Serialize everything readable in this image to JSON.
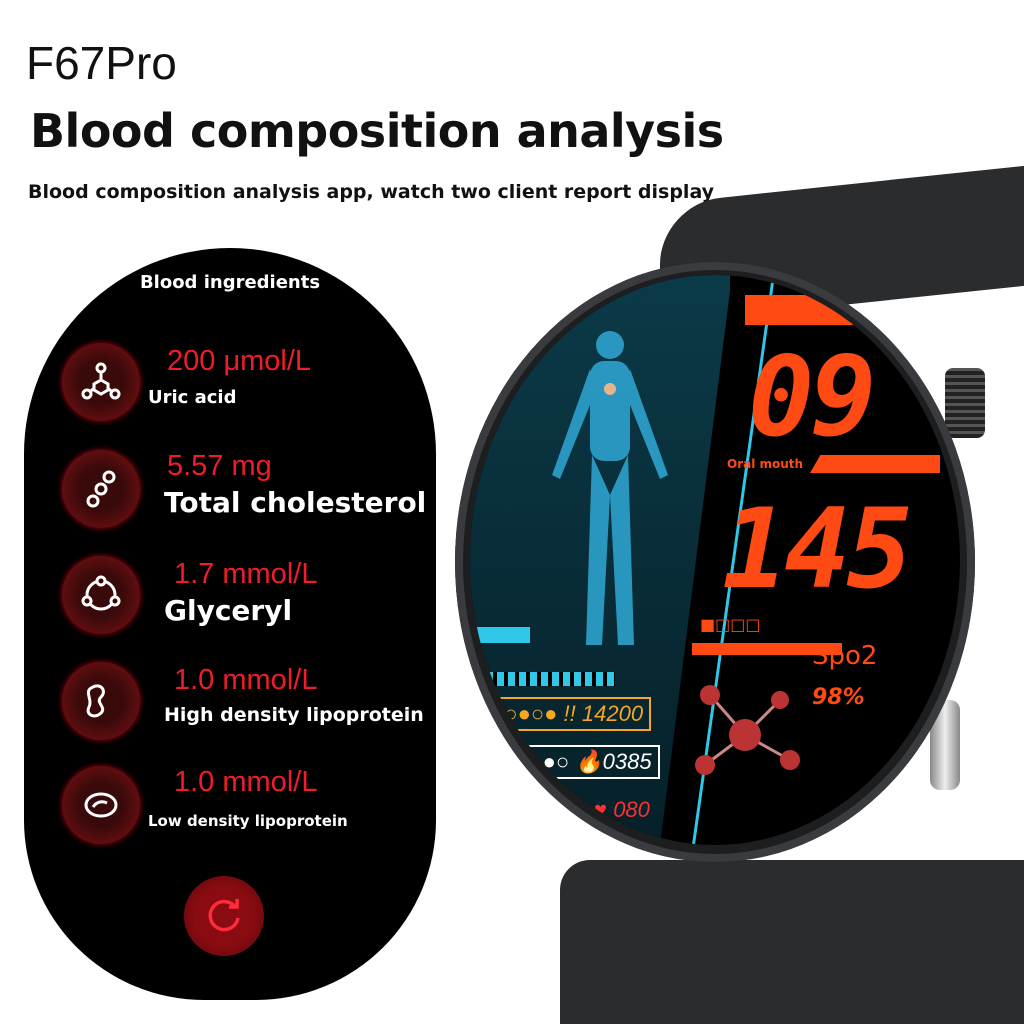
{
  "header": {
    "model": "F67Pro",
    "title": "Blood composition analysis",
    "subtitle": "Blood composition analysis app, watch two client report display"
  },
  "app": {
    "title": "Blood ingredients",
    "items": [
      {
        "value": "200 μmol/L",
        "label": "Uric acid",
        "icon": "molecule-branch-icon"
      },
      {
        "value": "5.57 mg",
        "label": "Total cholesterol",
        "icon": "molecule-chain-icon"
      },
      {
        "value": "1.7 mmol/L",
        "label": "Glyceryl",
        "icon": "molecule-ring-icon"
      },
      {
        "value": "1.0 mmol/L",
        "label": "High density lipoprotein",
        "icon": "blob-icon"
      },
      {
        "value": "1.0 mmol/L",
        "label": "Low density lipoprotein",
        "icon": "cell-icon"
      }
    ],
    "refresh_icon": "refresh-icon"
  },
  "watch": {
    "top_value": "09",
    "top_label": "Oral mouth",
    "main_value": "145",
    "spo2_label": "Spo2",
    "spo2_value": "98%",
    "steps": "14200",
    "calories": "0385",
    "heart_rate": "080"
  },
  "colors": {
    "accent_red": "#ef1c2a",
    "watch_orange": "#ff4a14",
    "cyan": "#2fc8e8",
    "steps_yellow": "#f5a623"
  }
}
